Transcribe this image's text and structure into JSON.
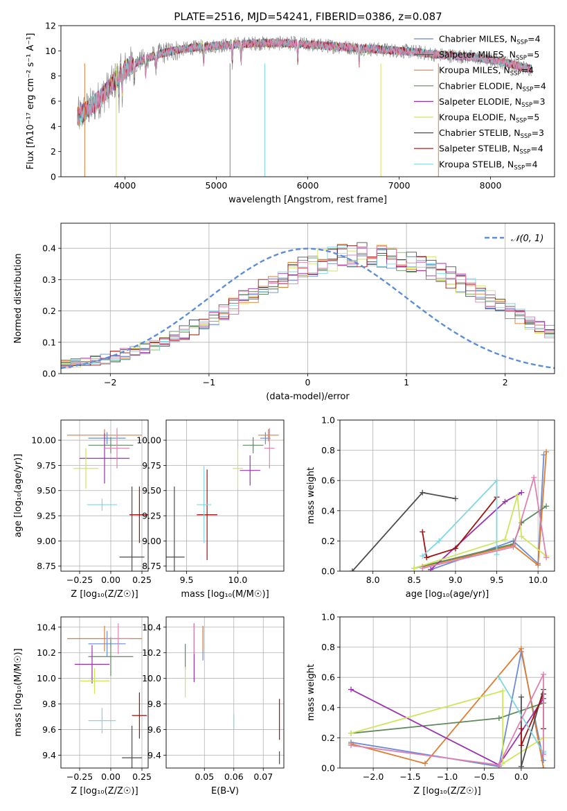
{
  "title": "PLATE=2516, MJD=54241, FIBERID=0386, z=0.087",
  "colors": [
    "#6a8bd6",
    "#e07b30",
    "#5c8a5c",
    "#9b30b0",
    "#cce65a",
    "#4d4d4d",
    "#a31010",
    "#7fd6e0",
    "#e080b0"
  ],
  "chart_data": [
    {
      "id": "spectrum",
      "type": "line",
      "xlabel": "wavelength [Angstrom, rest frame]",
      "ylabel": "Flux [fλ10⁻¹⁷ erg cm⁻² s⁻¹ A⁻¹]",
      "xlim": [
        3300,
        8700
      ],
      "ylim": [
        0,
        12
      ],
      "xticks": [
        4000,
        5000,
        6000,
        7000,
        8000
      ],
      "yticks": [
        0,
        2,
        4,
        6,
        8,
        10,
        12
      ],
      "grid": false,
      "legend": "top-right",
      "series": [
        {
          "name": "Chabrier MILES, N_SSP=4",
          "color": "#6a8bd6"
        },
        {
          "name": "Salpeter MILES, N_SSP=5",
          "color": "#5c5c5c"
        },
        {
          "name": "Kroupa MILES, N_SSP=4",
          "color": "#e07b30"
        },
        {
          "name": "Chabrier ELODIE, N_SSP=4",
          "color": "#5c8a5c"
        },
        {
          "name": "Salpeter ELODIE, N_SSP=3",
          "color": "#9b30b0"
        },
        {
          "name": "Kroupa ELODIE, N_SSP=5",
          "color": "#cce65a"
        },
        {
          "name": "Chabrier STELIB, N_SSP=3",
          "color": "#4d4d4d"
        },
        {
          "name": "Salpeter STELIB, N_SSP=4",
          "color": "#a31010"
        },
        {
          "name": "Kroupa STELIB, N_SSP=4",
          "color": "#7fd6e0"
        }
      ],
      "continuum": {
        "x": [
          3500,
          3700,
          3850,
          3950,
          4050,
          4200,
          4400,
          4600,
          4800,
          5000,
          5200,
          5400,
          5600,
          5800,
          6000,
          6200,
          6400,
          6600,
          6800,
          7000,
          7200,
          7400,
          7600,
          7800,
          8000,
          8200,
          8400
        ],
        "y": [
          4.8,
          6.0,
          7.2,
          8.2,
          8.8,
          9.3,
          9.8,
          10.1,
          10.3,
          10.4,
          10.5,
          10.6,
          10.6,
          10.6,
          10.5,
          10.4,
          10.3,
          10.2,
          10.1,
          10.0,
          9.9,
          9.7,
          9.6,
          9.5,
          9.3,
          9.0,
          8.6
        ]
      }
    },
    {
      "id": "residual-hist",
      "type": "line",
      "xlabel": "(data-model)/error",
      "ylabel": "Normed distribution",
      "xlim": [
        -2.5,
        2.5
      ],
      "ylim": [
        0,
        0.48
      ],
      "xticks": [
        -2,
        -1,
        0,
        1,
        2
      ],
      "yticks": [
        0.0,
        0.1,
        0.2,
        0.3,
        0.4
      ],
      "grid": true,
      "legend": "top-right",
      "normal_curve": {
        "name": "𝒩(0,1)",
        "color": "#5b8dd9"
      },
      "bin_width": 0.1,
      "bin_start": -2.5,
      "base_heights": [
        0.03,
        0.033,
        0.037,
        0.042,
        0.048,
        0.055,
        0.063,
        0.072,
        0.082,
        0.093,
        0.105,
        0.118,
        0.132,
        0.148,
        0.165,
        0.182,
        0.2,
        0.218,
        0.236,
        0.254,
        0.272,
        0.29,
        0.308,
        0.322,
        0.336,
        0.348,
        0.358,
        0.367,
        0.374,
        0.378,
        0.38,
        0.38,
        0.378,
        0.374,
        0.367,
        0.358,
        0.348,
        0.336,
        0.322,
        0.308,
        0.29,
        0.272,
        0.254,
        0.236,
        0.218,
        0.2,
        0.182,
        0.165,
        0.148,
        0.132
      ]
    },
    {
      "id": "age-vs-Z",
      "type": "scatter",
      "xlabel": "Z [log₁₀(Z/Z☉)]",
      "ylabel": "age  [log₁₀(age/yr)]",
      "xlim": [
        -0.4,
        0.3
      ],
      "ylim": [
        8.7,
        10.2
      ],
      "xticks": [
        -0.25,
        0.0,
        0.25
      ],
      "yticks": [
        8.75,
        9.0,
        9.25,
        9.5,
        9.75,
        10.0
      ],
      "grid": true,
      "points": [
        {
          "x": -0.03,
          "y": 10.02,
          "xerr": 0.15,
          "yerr": 0.06,
          "c": 0
        },
        {
          "x": -0.05,
          "y": 10.05,
          "xerr": 0.3,
          "yerr": 0.06,
          "c": 1
        },
        {
          "x": 0.0,
          "y": 9.95,
          "xerr": 0.18,
          "yerr": 0.08,
          "c": 2
        },
        {
          "x": -0.05,
          "y": 9.82,
          "xerr": 0.2,
          "yerr": 0.25,
          "c": 3
        },
        {
          "x": -0.2,
          "y": 9.72,
          "xerr": 0.1,
          "yerr": 0.2,
          "c": 4
        },
        {
          "x": 0.17,
          "y": 8.84,
          "xerr": 0.1,
          "yerr": 0.7,
          "c": 5
        },
        {
          "x": 0.23,
          "y": 9.26,
          "xerr": 0.08,
          "yerr": 0.28,
          "c": 6
        },
        {
          "x": -0.07,
          "y": 9.36,
          "xerr": 0.12,
          "yerr": 0.06,
          "c": 7
        },
        {
          "x": 0.05,
          "y": 9.92,
          "xerr": 0.1,
          "yerr": 0.2,
          "c": 8
        }
      ]
    },
    {
      "id": "age-vs-mass",
      "type": "scatter",
      "xlabel": "mass [log₁₀(M/M☉)]",
      "ylim": [
        8.7,
        10.2
      ],
      "xlim": [
        9.3,
        10.45
      ],
      "xticks": [
        9.5,
        10.0
      ],
      "yticks": [
        8.75,
        9.0,
        9.25,
        9.5,
        9.75,
        10.0
      ],
      "grid": true,
      "points": [
        {
          "x": 10.27,
          "y": 10.02,
          "xerr": 0.05,
          "yerr": 0.06,
          "c": 0
        },
        {
          "x": 10.3,
          "y": 10.05,
          "xerr": 0.1,
          "yerr": 0.06,
          "c": 1
        },
        {
          "x": 10.15,
          "y": 9.95,
          "xerr": 0.1,
          "yerr": 0.08,
          "c": 2
        },
        {
          "x": 10.12,
          "y": 9.7,
          "xerr": 0.1,
          "yerr": 0.15,
          "c": 3
        },
        {
          "x": 10.0,
          "y": 9.72,
          "xerr": 0.05,
          "yerr": 0.2,
          "c": 4
        },
        {
          "x": 9.38,
          "y": 8.84,
          "xerr": 0.1,
          "yerr": 0.7,
          "c": 5
        },
        {
          "x": 9.7,
          "y": 9.26,
          "xerr": 0.1,
          "yerr": 0.45,
          "c": 6
        },
        {
          "x": 9.67,
          "y": 9.36,
          "xerr": 0.07,
          "yerr": 0.38,
          "c": 7
        },
        {
          "x": 10.31,
          "y": 9.92,
          "xerr": 0.05,
          "yerr": 0.2,
          "c": 8
        }
      ]
    },
    {
      "id": "weight-vs-age",
      "type": "line",
      "xlabel": "age  [log₁₀(age/yr)]",
      "ylabel": "mass weight",
      "xlim": [
        7.6,
        10.2
      ],
      "ylim": [
        0,
        1.0
      ],
      "xticks": [
        8.0,
        8.5,
        9.0,
        9.5,
        10.0
      ],
      "yticks": [
        0.0,
        0.2,
        0.4,
        0.6,
        0.8,
        1.0
      ],
      "grid": true,
      "series": [
        {
          "c": 0,
          "x": [
            8.7,
            9.7,
            10.0,
            10.07
          ],
          "y": [
            0.01,
            0.2,
            0.05,
            0.77
          ]
        },
        {
          "c": 1,
          "x": [
            8.6,
            9.7,
            10.0,
            10.1
          ],
          "y": [
            0.03,
            0.17,
            0.04,
            0.79
          ]
        },
        {
          "c": 2,
          "x": [
            8.5,
            9.7,
            9.8,
            10.1
          ],
          "y": [
            0.02,
            0.18,
            0.32,
            0.43
          ]
        },
        {
          "c": 3,
          "x": [
            8.7,
            9.6,
            9.8
          ],
          "y": [
            0.01,
            0.46,
            0.52
          ]
        },
        {
          "c": 4,
          "x": [
            8.5,
            9.6,
            9.75,
            9.8,
            10.1
          ],
          "y": [
            0.02,
            0.21,
            0.5,
            0.23,
            0.1
          ]
        },
        {
          "c": 5,
          "x": [
            7.75,
            8.6,
            9.0
          ],
          "y": [
            0.0,
            0.52,
            0.48
          ]
        },
        {
          "c": 6,
          "x": [
            8.6,
            8.65,
            9.0,
            9.5
          ],
          "y": [
            0.26,
            0.09,
            0.15,
            0.49
          ]
        },
        {
          "c": 7,
          "x": [
            8.6,
            8.8,
            9.5,
            9.5
          ],
          "y": [
            0.1,
            0.2,
            0.6,
            0.11
          ]
        },
        {
          "c": 8,
          "x": [
            8.6,
            9.7,
            9.95,
            10.1
          ],
          "y": [
            0.02,
            0.16,
            0.62,
            0.09
          ]
        }
      ]
    },
    {
      "id": "mass-vs-Z",
      "type": "scatter",
      "xlabel": "Z [log₁₀(Z/Z☉)]",
      "ylabel": "mass [log₁₀(M/M☉)]",
      "xlim": [
        -0.4,
        0.3
      ],
      "ylim": [
        9.3,
        10.48
      ],
      "xticks": [
        -0.25,
        0.0,
        0.25
      ],
      "yticks": [
        9.4,
        9.6,
        9.8,
        10.0,
        10.2,
        10.4
      ],
      "grid": true,
      "points": [
        {
          "x": -0.03,
          "y": 10.27,
          "xerr": 0.15,
          "yerr": 0.1,
          "c": 0
        },
        {
          "x": -0.05,
          "y": 10.31,
          "xerr": 0.3,
          "yerr": 0.1,
          "c": 1
        },
        {
          "x": 0.0,
          "y": 10.17,
          "xerr": 0.18,
          "yerr": 0.15,
          "c": 2
        },
        {
          "x": -0.15,
          "y": 10.11,
          "xerr": 0.14,
          "yerr": 0.15,
          "c": 3
        },
        {
          "x": -0.13,
          "y": 9.98,
          "xerr": 0.12,
          "yerr": 0.1,
          "c": 4
        },
        {
          "x": 0.17,
          "y": 9.38,
          "xerr": 0.08,
          "yerr": 0.25,
          "c": 5
        },
        {
          "x": 0.23,
          "y": 9.71,
          "xerr": 0.06,
          "yerr": 0.18,
          "c": 6
        },
        {
          "x": -0.07,
          "y": 9.67,
          "xerr": 0.11,
          "yerr": 0.1,
          "c": 7
        },
        {
          "x": 0.06,
          "y": 10.31,
          "xerr": 0.1,
          "yerr": 0.12,
          "c": 8
        }
      ]
    },
    {
      "id": "mass-vs-ebv",
      "type": "scatter",
      "xlabel": "E(B-V)",
      "xlim": [
        0.037,
        0.077
      ],
      "ylim": [
        9.3,
        10.48
      ],
      "xticks": [
        0.05,
        0.06,
        0.07
      ],
      "xticklabels": [
        "0.05",
        "0.06",
        "0.07"
      ],
      "yticks": [
        9.4,
        9.6,
        9.8,
        10.0,
        10.2,
        10.4
      ],
      "grid": true,
      "points": [
        {
          "x": 0.0495,
          "y": 10.27,
          "xerr": 0,
          "yerr": 0.13,
          "c": 0
        },
        {
          "x": 0.0495,
          "y": 10.31,
          "xerr": 0,
          "yerr": 0.1,
          "c": 1
        },
        {
          "x": 0.0435,
          "y": 10.17,
          "xerr": 0,
          "yerr": 0.1,
          "c": 2
        },
        {
          "x": 0.0465,
          "y": 10.2,
          "xerr": 0,
          "yerr": 0.23,
          "c": 3
        },
        {
          "x": 0.0435,
          "y": 9.97,
          "xerr": 0,
          "yerr": 0.12,
          "c": 4
        },
        {
          "x": 0.0755,
          "y": 9.38,
          "xerr": 0,
          "yerr": 0.05,
          "c": 5
        },
        {
          "x": 0.0755,
          "y": 9.68,
          "xerr": 0,
          "yerr": 0.16,
          "c": 6
        },
        {
          "x": 0.06,
          "y": 9.66,
          "xerr": 0,
          "yerr": 0.06,
          "c": 7
        },
        {
          "x": 0.0465,
          "y": 10.31,
          "xerr": 0,
          "yerr": 0.12,
          "c": 8
        }
      ]
    },
    {
      "id": "weight-vs-Z",
      "type": "line",
      "xlabel": "Z [log₁₀(Z/Z☉)]",
      "ylabel": "mass weight",
      "xlim": [
        -2.45,
        0.45
      ],
      "ylim": [
        0,
        1.0
      ],
      "xticks": [
        -2.0,
        -1.5,
        -1.0,
        -0.5,
        0.0
      ],
      "yticks": [
        0.0,
        0.2,
        0.4,
        0.6,
        0.8,
        1.0
      ],
      "grid": true,
      "series": [
        {
          "c": 0,
          "x": [
            -2.3,
            -0.3,
            0.0,
            0.3
          ],
          "y": [
            0.17,
            0.01,
            0.77,
            0.05
          ]
        },
        {
          "c": 1,
          "x": [
            -2.3,
            -1.3,
            0.0,
            0.3
          ],
          "y": [
            0.16,
            0.03,
            0.79,
            0.0
          ]
        },
        {
          "c": 2,
          "x": [
            -2.3,
            -0.3,
            0.3
          ],
          "y": [
            0.23,
            0.33,
            0.43
          ]
        },
        {
          "c": 3,
          "x": [
            -2.3,
            -0.3,
            0.3
          ],
          "y": [
            0.52,
            0.02,
            0.46
          ]
        },
        {
          "c": 4,
          "x": [
            -2.3,
            -0.25,
            -0.25,
            0.3
          ],
          "y": [
            0.23,
            0.51,
            0.03,
            0.2
          ]
        },
        {
          "c": 5,
          "x": [
            0.0,
            0.0,
            0.3
          ],
          "y": [
            0.47,
            0.01,
            0.52
          ]
        },
        {
          "c": 6,
          "x": [
            0.0,
            0.0,
            0.3,
            0.3
          ],
          "y": [
            0.26,
            0.15,
            0.49,
            0.26
          ]
        },
        {
          "c": 7,
          "x": [
            -0.3,
            0.3,
            0.3
          ],
          "y": [
            0.6,
            0.1,
            0.11
          ]
        },
        {
          "c": 8,
          "x": [
            -2.3,
            -0.3,
            0.3,
            0.3
          ],
          "y": [
            0.15,
            0.02,
            0.62,
            0.09
          ]
        }
      ]
    }
  ]
}
